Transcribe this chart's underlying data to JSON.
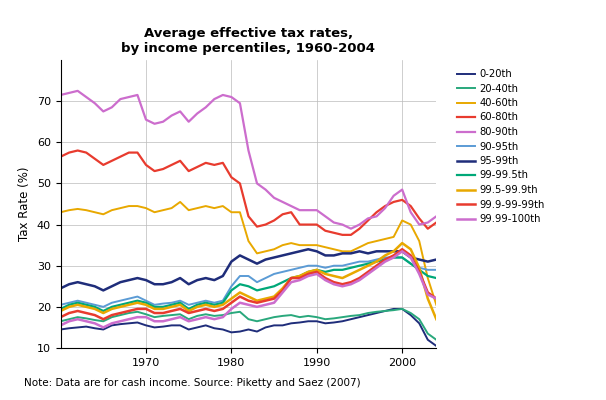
{
  "title": "Average effective tax rates,\nby income percentiles, 1960-2004",
  "ylabel": "Tax Rate (%)",
  "note": "Note: Data are for cash income. Source: Piketty and Saez (2007)",
  "xlim": [
    1960,
    2004
  ],
  "ylim": [
    10,
    80
  ],
  "yticks": [
    10,
    20,
    30,
    40,
    50,
    60,
    70
  ],
  "xticks": [
    1970,
    1980,
    1990,
    2000
  ],
  "series": {
    "0-20th": {
      "color": "#1f2d7a",
      "linewidth": 1.4,
      "years": [
        1960,
        1961,
        1962,
        1963,
        1964,
        1965,
        1966,
        1967,
        1968,
        1969,
        1970,
        1971,
        1972,
        1973,
        1974,
        1975,
        1976,
        1977,
        1978,
        1979,
        1980,
        1981,
        1982,
        1983,
        1984,
        1985,
        1986,
        1987,
        1988,
        1989,
        1990,
        1991,
        1992,
        1993,
        1994,
        1995,
        1996,
        1997,
        1998,
        1999,
        2000,
        2001,
        2002,
        2003,
        2004
      ],
      "values": [
        14.5,
        14.8,
        15.0,
        15.2,
        14.8,
        14.5,
        15.5,
        15.8,
        16.0,
        16.2,
        15.5,
        15.0,
        15.2,
        15.5,
        15.5,
        14.5,
        15.0,
        15.5,
        14.8,
        14.5,
        13.8,
        14.0,
        14.5,
        14.0,
        15.0,
        15.5,
        15.5,
        16.0,
        16.2,
        16.5,
        16.5,
        16.0,
        16.2,
        16.5,
        17.0,
        17.5,
        18.0,
        18.5,
        19.0,
        19.5,
        19.5,
        18.0,
        16.0,
        12.0,
        10.5
      ]
    },
    "20-40th": {
      "color": "#29a87c",
      "linewidth": 1.4,
      "years": [
        1960,
        1961,
        1962,
        1963,
        1964,
        1965,
        1966,
        1967,
        1968,
        1969,
        1970,
        1971,
        1972,
        1973,
        1974,
        1975,
        1976,
        1977,
        1978,
        1979,
        1980,
        1981,
        1982,
        1983,
        1984,
        1985,
        1986,
        1987,
        1988,
        1989,
        1990,
        1991,
        1992,
        1993,
        1994,
        1995,
        1996,
        1997,
        1998,
        1999,
        2000,
        2001,
        2002,
        2003,
        2004
      ],
      "values": [
        16.5,
        17.0,
        17.5,
        17.2,
        16.8,
        16.5,
        17.5,
        18.0,
        18.5,
        18.8,
        18.2,
        17.5,
        17.8,
        18.0,
        18.2,
        17.0,
        17.8,
        18.2,
        17.8,
        18.0,
        18.5,
        18.8,
        17.0,
        16.5,
        17.0,
        17.5,
        17.8,
        18.0,
        17.5,
        17.8,
        17.5,
        17.0,
        17.2,
        17.5,
        17.8,
        18.0,
        18.5,
        18.8,
        19.0,
        19.2,
        19.5,
        18.5,
        17.0,
        13.5,
        12.0
      ]
    },
    "40-60th": {
      "color": "#e8a800",
      "linewidth": 1.4,
      "years": [
        1960,
        1961,
        1962,
        1963,
        1964,
        1965,
        1966,
        1967,
        1968,
        1969,
        1970,
        1971,
        1972,
        1973,
        1974,
        1975,
        1976,
        1977,
        1978,
        1979,
        1980,
        1981,
        1982,
        1983,
        1984,
        1985,
        1986,
        1987,
        1988,
        1989,
        1990,
        1991,
        1992,
        1993,
        1994,
        1995,
        1996,
        1997,
        1998,
        1999,
        2000,
        2001,
        2002,
        2003,
        2004
      ],
      "values": [
        43.0,
        43.5,
        43.8,
        43.5,
        43.0,
        42.5,
        43.5,
        44.0,
        44.5,
        44.5,
        44.0,
        43.0,
        43.5,
        44.0,
        45.5,
        43.5,
        44.0,
        44.5,
        44.0,
        44.5,
        43.0,
        43.0,
        36.0,
        33.0,
        33.5,
        34.0,
        35.0,
        35.5,
        35.0,
        35.0,
        35.0,
        34.5,
        34.0,
        33.5,
        33.5,
        34.5,
        35.5,
        36.0,
        36.5,
        37.0,
        41.0,
        40.0,
        36.0,
        27.0,
        20.5
      ]
    },
    "60-80th": {
      "color": "#e83b2e",
      "linewidth": 1.6,
      "years": [
        1960,
        1961,
        1962,
        1963,
        1964,
        1965,
        1966,
        1967,
        1968,
        1969,
        1970,
        1971,
        1972,
        1973,
        1974,
        1975,
        1976,
        1977,
        1978,
        1979,
        1980,
        1981,
        1982,
        1983,
        1984,
        1985,
        1986,
        1987,
        1988,
        1989,
        1990,
        1991,
        1992,
        1993,
        1994,
        1995,
        1996,
        1997,
        1998,
        1999,
        2000,
        2001,
        2002,
        2003,
        2004
      ],
      "values": [
        56.5,
        57.5,
        58.0,
        57.5,
        56.0,
        54.5,
        55.5,
        56.5,
        57.5,
        57.5,
        54.5,
        53.0,
        53.5,
        54.5,
        55.5,
        53.0,
        54.0,
        55.0,
        54.5,
        55.0,
        51.5,
        50.0,
        42.0,
        39.5,
        40.0,
        41.0,
        42.5,
        43.0,
        40.0,
        40.0,
        40.0,
        38.5,
        38.0,
        37.5,
        37.5,
        39.0,
        41.0,
        43.0,
        44.5,
        45.5,
        46.0,
        44.5,
        41.5,
        39.0,
        40.5
      ]
    },
    "80-90th": {
      "color": "#cc6dcd",
      "linewidth": 1.6,
      "years": [
        1960,
        1961,
        1962,
        1963,
        1964,
        1965,
        1966,
        1967,
        1968,
        1969,
        1970,
        1971,
        1972,
        1973,
        1974,
        1975,
        1976,
        1977,
        1978,
        1979,
        1980,
        1981,
        1982,
        1983,
        1984,
        1985,
        1986,
        1987,
        1988,
        1989,
        1990,
        1991,
        1992,
        1993,
        1994,
        1995,
        1996,
        1997,
        1998,
        1999,
        2000,
        2001,
        2002,
        2003,
        2004
      ],
      "values": [
        71.5,
        72.0,
        72.5,
        71.0,
        69.5,
        67.5,
        68.5,
        70.5,
        71.0,
        71.5,
        65.5,
        64.5,
        65.0,
        66.5,
        67.5,
        65.0,
        67.0,
        68.5,
        70.5,
        71.5,
        71.0,
        69.5,
        58.0,
        50.0,
        48.5,
        46.5,
        45.5,
        44.5,
        43.5,
        43.5,
        43.5,
        42.0,
        40.5,
        40.0,
        39.0,
        40.0,
        41.5,
        42.0,
        44.0,
        47.0,
        48.5,
        43.0,
        40.0,
        40.5,
        42.0
      ]
    },
    "90-95th": {
      "color": "#5b9bd5",
      "linewidth": 1.4,
      "years": [
        1960,
        1961,
        1962,
        1963,
        1964,
        1965,
        1966,
        1967,
        1968,
        1969,
        1970,
        1971,
        1972,
        1973,
        1974,
        1975,
        1976,
        1977,
        1978,
        1979,
        1980,
        1981,
        1982,
        1983,
        1984,
        1985,
        1986,
        1987,
        1988,
        1989,
        1990,
        1991,
        1992,
        1993,
        1994,
        1995,
        1996,
        1997,
        1998,
        1999,
        2000,
        2001,
        2002,
        2003,
        2004
      ],
      "values": [
        20.5,
        21.0,
        21.5,
        21.0,
        20.5,
        20.0,
        21.0,
        21.5,
        22.0,
        22.5,
        21.5,
        20.5,
        20.8,
        21.0,
        21.5,
        20.5,
        21.0,
        21.5,
        21.0,
        21.5,
        25.0,
        27.5,
        27.5,
        26.0,
        27.0,
        28.0,
        28.5,
        29.0,
        29.5,
        30.0,
        30.0,
        29.5,
        30.0,
        30.0,
        30.5,
        31.0,
        31.0,
        31.5,
        32.0,
        32.0,
        32.0,
        30.5,
        29.5,
        29.0,
        29.0
      ]
    },
    "95-99th": {
      "color": "#1f2d7a",
      "linewidth": 1.8,
      "years": [
        1960,
        1961,
        1962,
        1963,
        1964,
        1965,
        1966,
        1967,
        1968,
        1969,
        1970,
        1971,
        1972,
        1973,
        1974,
        1975,
        1976,
        1977,
        1978,
        1979,
        1980,
        1981,
        1982,
        1983,
        1984,
        1985,
        1986,
        1987,
        1988,
        1989,
        1990,
        1991,
        1992,
        1993,
        1994,
        1995,
        1996,
        1997,
        1998,
        1999,
        2000,
        2001,
        2002,
        2003,
        2004
      ],
      "values": [
        24.5,
        25.5,
        26.0,
        25.5,
        25.0,
        24.0,
        25.0,
        26.0,
        26.5,
        27.0,
        26.5,
        25.5,
        25.5,
        26.0,
        27.0,
        25.5,
        26.5,
        27.0,
        26.5,
        27.5,
        31.0,
        32.5,
        31.5,
        30.5,
        31.5,
        32.0,
        32.5,
        33.0,
        33.5,
        34.0,
        33.5,
        32.5,
        32.5,
        33.0,
        33.0,
        33.5,
        33.0,
        33.5,
        33.5,
        33.5,
        33.5,
        32.0,
        31.5,
        31.0,
        31.5
      ]
    },
    "99-99.5th": {
      "color": "#00a878",
      "linewidth": 1.6,
      "years": [
        1960,
        1961,
        1962,
        1963,
        1964,
        1965,
        1966,
        1967,
        1968,
        1969,
        1970,
        1971,
        1972,
        1973,
        1974,
        1975,
        1976,
        1977,
        1978,
        1979,
        1980,
        1981,
        1982,
        1983,
        1984,
        1985,
        1986,
        1987,
        1988,
        1989,
        1990,
        1991,
        1992,
        1993,
        1994,
        1995,
        1996,
        1997,
        1998,
        1999,
        2000,
        2001,
        2002,
        2003,
        2004
      ],
      "values": [
        19.5,
        20.5,
        21.0,
        20.5,
        20.0,
        19.0,
        20.0,
        20.5,
        21.0,
        21.5,
        21.0,
        20.0,
        20.0,
        20.5,
        21.0,
        19.5,
        20.5,
        21.0,
        20.5,
        21.0,
        24.0,
        25.5,
        25.0,
        24.0,
        24.5,
        25.0,
        26.0,
        27.0,
        27.5,
        28.5,
        29.0,
        28.5,
        29.0,
        29.0,
        29.5,
        30.0,
        30.5,
        31.0,
        31.5,
        32.0,
        32.0,
        30.5,
        29.0,
        27.5,
        27.0
      ]
    },
    "99.5-99.9th": {
      "color": "#e8a800",
      "linewidth": 1.8,
      "years": [
        1960,
        1961,
        1962,
        1963,
        1964,
        1965,
        1966,
        1967,
        1968,
        1969,
        1970,
        1971,
        1972,
        1973,
        1974,
        1975,
        1976,
        1977,
        1978,
        1979,
        1980,
        1981,
        1982,
        1983,
        1984,
        1985,
        1986,
        1987,
        1988,
        1989,
        1990,
        1991,
        1992,
        1993,
        1994,
        1995,
        1996,
        1997,
        1998,
        1999,
        2000,
        2001,
        2002,
        2003,
        2004
      ],
      "values": [
        19.0,
        20.0,
        20.5,
        20.0,
        19.5,
        18.5,
        19.5,
        20.0,
        20.5,
        21.0,
        20.5,
        19.5,
        19.5,
        20.0,
        20.5,
        19.0,
        20.0,
        20.5,
        20.0,
        20.5,
        22.0,
        23.5,
        22.5,
        21.5,
        22.0,
        22.5,
        24.5,
        27.0,
        27.5,
        28.5,
        29.0,
        28.0,
        27.5,
        27.0,
        28.0,
        29.0,
        30.0,
        31.0,
        32.5,
        33.5,
        35.5,
        34.0,
        29.5,
        22.0,
        17.0
      ]
    },
    "99.9-99-99th": {
      "color": "#e83b2e",
      "linewidth": 1.8,
      "years": [
        1960,
        1961,
        1962,
        1963,
        1964,
        1965,
        1966,
        1967,
        1968,
        1969,
        1970,
        1971,
        1972,
        1973,
        1974,
        1975,
        1976,
        1977,
        1978,
        1979,
        1980,
        1981,
        1982,
        1983,
        1984,
        1985,
        1986,
        1987,
        1988,
        1989,
        1990,
        1991,
        1992,
        1993,
        1994,
        1995,
        1996,
        1997,
        1998,
        1999,
        2000,
        2001,
        2002,
        2003,
        2004
      ],
      "values": [
        17.5,
        18.5,
        19.0,
        18.5,
        18.0,
        17.0,
        18.0,
        18.5,
        19.0,
        19.5,
        19.5,
        18.5,
        18.5,
        19.0,
        19.5,
        18.5,
        19.0,
        19.5,
        19.0,
        19.5,
        21.0,
        22.5,
        21.5,
        21.0,
        21.5,
        22.0,
        24.0,
        27.0,
        27.0,
        28.0,
        28.5,
        27.0,
        26.0,
        25.5,
        26.0,
        27.0,
        28.5,
        30.0,
        31.5,
        32.5,
        34.0,
        32.5,
        28.5,
        23.5,
        22.0
      ]
    },
    "99.99-100th": {
      "color": "#cc6dcd",
      "linewidth": 1.8,
      "years": [
        1960,
        1961,
        1962,
        1963,
        1964,
        1965,
        1966,
        1967,
        1968,
        1969,
        1970,
        1971,
        1972,
        1973,
        1974,
        1975,
        1976,
        1977,
        1978,
        1979,
        1980,
        1981,
        1982,
        1983,
        1984,
        1985,
        1986,
        1987,
        1988,
        1989,
        1990,
        1991,
        1992,
        1993,
        1994,
        1995,
        1996,
        1997,
        1998,
        1999,
        2000,
        2001,
        2002,
        2003,
        2004
      ],
      "values": [
        15.5,
        16.5,
        17.0,
        16.5,
        16.0,
        15.0,
        16.0,
        16.5,
        17.0,
        17.5,
        17.5,
        16.5,
        16.5,
        17.0,
        17.5,
        16.5,
        17.0,
        17.5,
        17.0,
        17.5,
        19.5,
        21.0,
        20.5,
        20.0,
        20.5,
        21.0,
        23.5,
        26.0,
        26.5,
        27.5,
        28.0,
        26.5,
        25.5,
        25.0,
        25.5,
        26.5,
        28.0,
        29.5,
        31.0,
        32.0,
        33.5,
        32.0,
        28.0,
        23.0,
        22.0
      ]
    }
  },
  "legend_order": [
    "0-20th",
    "20-40th",
    "40-60th",
    "60-80th",
    "80-90th",
    "90-95th",
    "95-99th",
    "99-99.5th",
    "99.5-99.9th",
    "99.9-99-99th",
    "99.99-100th"
  ],
  "legend_labels": [
    "0-20th",
    "20-40th",
    "40-60th",
    "60-80th",
    "80-90th",
    "90-95th",
    "95-99th",
    "99-99.5th",
    "99.5-99.9th",
    "99.9-99-99th",
    "99.99-100th"
  ]
}
